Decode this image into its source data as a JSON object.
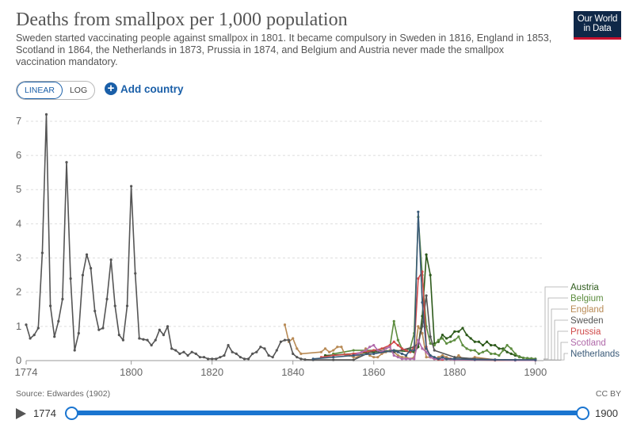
{
  "header": {
    "title": "Deaths from smallpox per 1,000 population",
    "subtitle": "Sweden started vaccinating people against smallpox in 1801. It became compulsory in Sweden in 1816, England in 1853, Scotland in 1864, the Netherlands in 1873, Prussia in 1874, and Belgium and Austria never made the smallpox vaccination mandatory.",
    "logo_line1": "Our World",
    "logo_line2": "in Data"
  },
  "controls": {
    "linear_label": "LINEAR",
    "log_label": "LOG",
    "add_country_label": "Add country"
  },
  "footer": {
    "source": "Source: Edwardes (1902)",
    "license": "CC BY"
  },
  "timeline": {
    "start_label": "1774",
    "end_label": "1900",
    "start_year": 1774,
    "end_year": 1900
  },
  "chart_data": {
    "type": "line",
    "xlim": [
      1774,
      1902
    ],
    "ylim": [
      0,
      7.3
    ],
    "x_ticks": [
      "1774",
      "1800",
      "1820",
      "1840",
      "1860",
      "1880",
      "1900"
    ],
    "y_ticks": [
      "0",
      "1",
      "2",
      "3",
      "4",
      "5",
      "6",
      "7"
    ],
    "grid": true,
    "legend": "right",
    "series": [
      {
        "name": "Austria",
        "color": "#2d5a1b",
        "x": [
          1848,
          1855,
          1860,
          1865,
          1870,
          1871,
          1872,
          1873,
          1874,
          1875,
          1876,
          1877,
          1878,
          1879,
          1880,
          1881,
          1882,
          1883,
          1884,
          1885,
          1886,
          1887,
          1888,
          1889,
          1890,
          1891,
          1892,
          1893,
          1894,
          1895,
          1896,
          1897,
          1898,
          1899,
          1900
        ],
        "y": [
          0.15,
          0.2,
          0.25,
          0.3,
          0.25,
          0.4,
          1.3,
          3.1,
          2.5,
          0.5,
          0.55,
          0.75,
          0.65,
          0.7,
          0.85,
          0.85,
          0.95,
          0.75,
          0.65,
          0.55,
          0.55,
          0.45,
          0.55,
          0.45,
          0.45,
          0.35,
          0.35,
          0.25,
          0.2,
          0.15,
          0.12,
          0.08,
          0.07,
          0.06,
          0.05
        ]
      },
      {
        "name": "Belgium",
        "color": "#5d8d3f",
        "x": [
          1850,
          1855,
          1860,
          1863,
          1864,
          1865,
          1866,
          1867,
          1868,
          1869,
          1870,
          1871,
          1872,
          1873,
          1874,
          1875,
          1876,
          1877,
          1878,
          1879,
          1880,
          1881,
          1882,
          1883,
          1884,
          1885,
          1886,
          1887,
          1888,
          1889,
          1890,
          1891,
          1892,
          1893,
          1894,
          1895,
          1896,
          1897,
          1898,
          1899,
          1900
        ],
        "y": [
          0.2,
          0.3,
          0.3,
          0.35,
          0.4,
          1.15,
          0.6,
          0.35,
          0.3,
          0.35,
          0.8,
          4.2,
          2.5,
          1.0,
          0.5,
          0.45,
          0.6,
          0.65,
          0.5,
          0.55,
          0.6,
          0.7,
          0.45,
          0.35,
          0.3,
          0.3,
          0.2,
          0.25,
          0.3,
          0.2,
          0.2,
          0.15,
          0.3,
          0.45,
          0.35,
          0.2,
          0.1,
          0.08,
          0.07,
          0.06,
          0.05
        ]
      },
      {
        "name": "England",
        "color": "#b88a55",
        "x": [
          1838,
          1839,
          1840,
          1841,
          1842,
          1847,
          1848,
          1849,
          1850,
          1851,
          1852,
          1853,
          1854,
          1855,
          1856,
          1857,
          1858,
          1859,
          1860,
          1861,
          1862,
          1863,
          1864,
          1865,
          1866,
          1867,
          1868,
          1869,
          1870,
          1871,
          1872,
          1873,
          1874,
          1875,
          1876,
          1877,
          1878,
          1879,
          1880,
          1881,
          1882,
          1883,
          1884,
          1885,
          1890,
          1895,
          1900
        ],
        "y": [
          1.05,
          0.55,
          0.65,
          0.35,
          0.2,
          0.25,
          0.35,
          0.25,
          0.3,
          0.4,
          0.4,
          0.15,
          0.15,
          0.1,
          0.1,
          0.2,
          0.35,
          0.15,
          0.1,
          0.1,
          0.2,
          0.25,
          0.3,
          0.25,
          0.15,
          0.1,
          0.1,
          0.05,
          0.1,
          1.0,
          0.8,
          0.1,
          0.1,
          0.05,
          0.1,
          0.15,
          0.1,
          0.05,
          0.05,
          0.15,
          0.05,
          0.05,
          0.05,
          0.1,
          0.02,
          0.02,
          0.02
        ]
      },
      {
        "name": "Sweden",
        "color": "#555",
        "x": [
          1774,
          1775,
          1776,
          1777,
          1778,
          1779,
          1780,
          1781,
          1782,
          1783,
          1784,
          1785,
          1786,
          1787,
          1788,
          1789,
          1790,
          1791,
          1792,
          1793,
          1794,
          1795,
          1796,
          1797,
          1798,
          1799,
          1800,
          1801,
          1802,
          1803,
          1804,
          1805,
          1806,
          1807,
          1808,
          1809,
          1810,
          1811,
          1812,
          1813,
          1814,
          1815,
          1816,
          1817,
          1818,
          1819,
          1820,
          1821,
          1822,
          1823,
          1824,
          1825,
          1826,
          1827,
          1828,
          1829,
          1830,
          1831,
          1832,
          1833,
          1834,
          1835,
          1836,
          1837,
          1838,
          1839,
          1840,
          1841,
          1842,
          1843,
          1845,
          1850,
          1855,
          1860,
          1865,
          1870,
          1871,
          1872,
          1873,
          1874,
          1875,
          1880,
          1885,
          1890,
          1895,
          1900
        ],
        "y": [
          1.05,
          0.65,
          0.75,
          0.95,
          3.15,
          7.2,
          1.6,
          0.7,
          1.15,
          1.8,
          5.8,
          2.4,
          0.3,
          0.8,
          2.5,
          3.1,
          2.7,
          1.45,
          0.9,
          0.95,
          1.8,
          2.95,
          1.6,
          0.75,
          0.6,
          1.6,
          5.1,
          2.55,
          0.65,
          0.62,
          0.6,
          0.45,
          0.6,
          0.9,
          0.75,
          1.0,
          0.35,
          0.3,
          0.2,
          0.25,
          0.15,
          0.25,
          0.2,
          0.1,
          0.1,
          0.05,
          0.05,
          0.05,
          0.1,
          0.15,
          0.45,
          0.25,
          0.2,
          0.1,
          0.05,
          0.05,
          0.2,
          0.25,
          0.4,
          0.35,
          0.15,
          0.1,
          0.3,
          0.55,
          0.6,
          0.6,
          0.2,
          0.1,
          0.05,
          0.03,
          0.02,
          0.02,
          0.02,
          0.3,
          0.25,
          0.4,
          0.5,
          1.0,
          1.9,
          0.7,
          0.3,
          0.1,
          0.05,
          0.03,
          0.02,
          0.02
        ]
      },
      {
        "name": "Prussia",
        "color": "#d04a4a",
        "x": [
          1847,
          1850,
          1855,
          1860,
          1862,
          1864,
          1865,
          1866,
          1867,
          1868,
          1869,
          1870,
          1871,
          1872,
          1873,
          1874,
          1875,
          1876,
          1877,
          1878,
          1879,
          1880,
          1885,
          1890,
          1895,
          1900
        ],
        "y": [
          0.1,
          0.15,
          0.2,
          0.3,
          0.35,
          0.45,
          0.55,
          0.45,
          0.35,
          0.3,
          0.25,
          0.4,
          2.4,
          2.6,
          0.4,
          0.1,
          0.05,
          0.03,
          0.03,
          0.05,
          0.05,
          0.03,
          0.02,
          0.01,
          0.01,
          0.01
        ]
      },
      {
        "name": "Scotland",
        "color": "#b06aaa",
        "x": [
          1855,
          1856,
          1857,
          1858,
          1859,
          1860,
          1861,
          1862,
          1863,
          1864,
          1865,
          1866,
          1867,
          1868,
          1869,
          1870,
          1871,
          1872,
          1873,
          1874,
          1875,
          1880,
          1885,
          1890,
          1895,
          1900
        ],
        "y": [
          0.15,
          0.2,
          0.25,
          0.3,
          0.4,
          0.45,
          0.3,
          0.25,
          0.35,
          0.4,
          0.15,
          0.1,
          0.05,
          0.05,
          0.05,
          0.05,
          0.6,
          0.35,
          0.25,
          0.1,
          0.05,
          0.03,
          0.02,
          0.02,
          0.01,
          0.01
        ]
      },
      {
        "name": "Netherlands",
        "color": "#3a5a78",
        "x": [
          1845,
          1850,
          1855,
          1860,
          1865,
          1866,
          1867,
          1868,
          1869,
          1870,
          1871,
          1872,
          1873,
          1874,
          1875,
          1876,
          1877,
          1878,
          1880,
          1885,
          1890,
          1895,
          1900
        ],
        "y": [
          0.05,
          0.1,
          0.15,
          0.2,
          0.3,
          0.25,
          0.2,
          0.15,
          0.3,
          0.3,
          4.35,
          1.7,
          0.35,
          0.15,
          0.1,
          0.05,
          0.1,
          0.05,
          0.05,
          0.03,
          0.02,
          0.02,
          0.02
        ]
      }
    ]
  }
}
